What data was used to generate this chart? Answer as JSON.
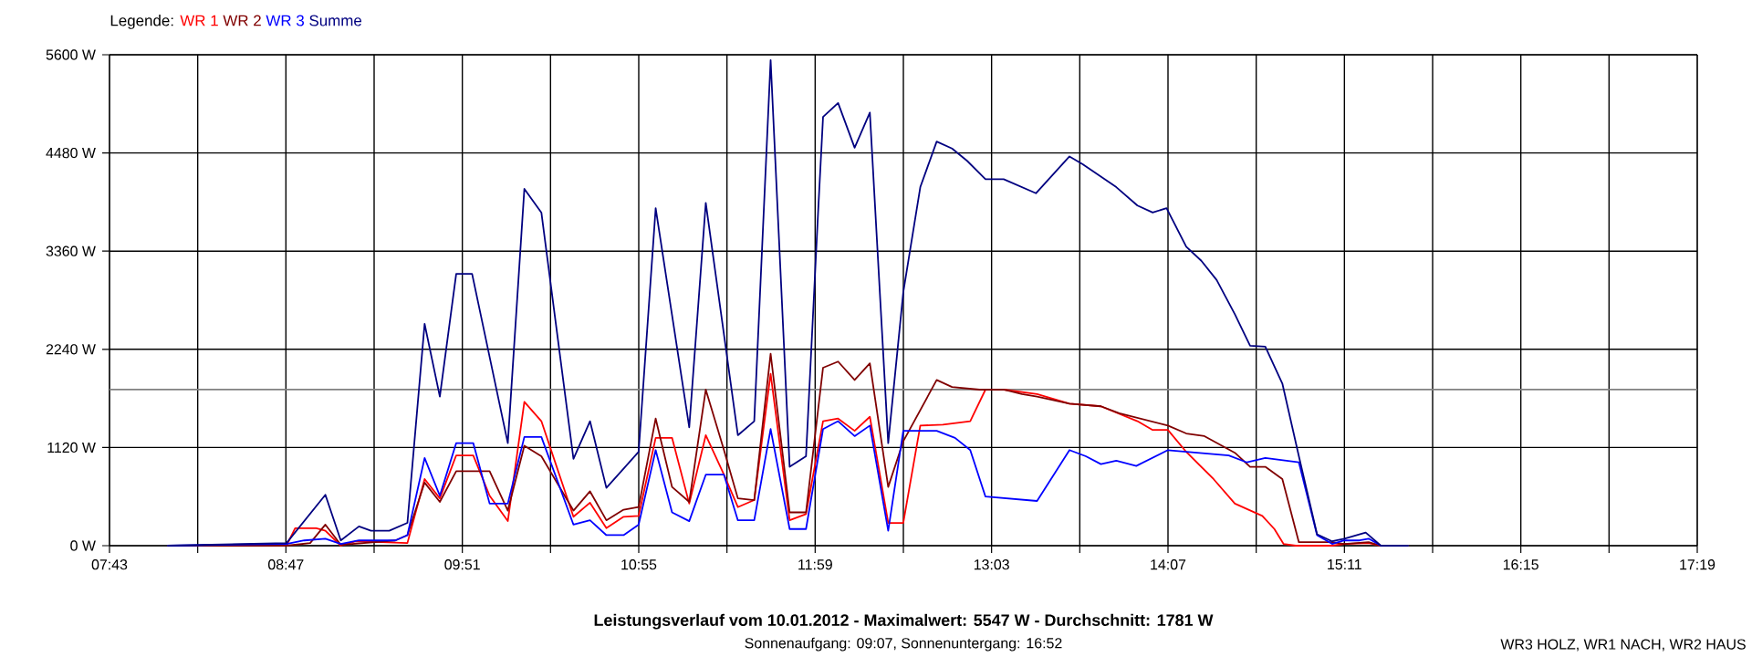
{
  "chart_data": {
    "type": "line",
    "title": "Leistungsverlauf vom 10.01.2012 - Maximalwert: 5547 W - Durchschnitt: 1781 W",
    "subtitle": "Sonnenaufgang: 09:07, Sonnenuntergang: 16:52",
    "annotations": [
      "WR3 HOLZ, WR1 NACH, WR2 HAUS"
    ],
    "legend_title": "Legende:",
    "legend": "top left",
    "grid": true,
    "xlim": [
      7.7167,
      17.3167
    ],
    "ylim": [
      0,
      5600
    ],
    "xticks": [
      {
        "value": 7.7167,
        "label": "07:43"
      },
      {
        "value": 8.25,
        "label": null
      },
      {
        "value": 8.7833,
        "label": "08:47"
      },
      {
        "value": 9.3167,
        "label": null
      },
      {
        "value": 9.85,
        "label": "09:51"
      },
      {
        "value": 10.3833,
        "label": null
      },
      {
        "value": 10.9167,
        "label": "10:55"
      },
      {
        "value": 11.45,
        "label": null
      },
      {
        "value": 11.9833,
        "label": "11:59"
      },
      {
        "value": 12.5167,
        "label": null
      },
      {
        "value": 13.05,
        "label": "13:03"
      },
      {
        "value": 13.5833,
        "label": null
      },
      {
        "value": 14.1167,
        "label": "14:07"
      },
      {
        "value": 14.65,
        "label": null
      },
      {
        "value": 15.1833,
        "label": "15:11"
      },
      {
        "value": 15.7167,
        "label": null
      },
      {
        "value": 16.25,
        "label": "16:15"
      },
      {
        "value": 16.7833,
        "label": null
      },
      {
        "value": 17.3167,
        "label": "17:19"
      }
    ],
    "yticks": [
      {
        "value": 0,
        "label": "0 W"
      },
      {
        "value": 1120,
        "label": "1120 W"
      },
      {
        "value": 2240,
        "label": "2240 W"
      },
      {
        "value": 3360,
        "label": "3360 W"
      },
      {
        "value": 4480,
        "label": "4480 W"
      },
      {
        "value": 5600,
        "label": "5600 W"
      }
    ],
    "ref_lines": [
      {
        "axis": "y",
        "value": 1781,
        "color": "#808080"
      }
    ],
    "series": [
      {
        "name": "WR 1",
        "color": "#ff0000",
        "x": [
          8.067,
          8.787,
          8.839,
          8.967,
          9.022,
          9.115,
          9.206,
          9.518,
          9.622,
          9.714,
          9.813,
          9.916,
          10.015,
          10.125,
          10.225,
          10.328,
          10.522,
          10.622,
          10.721,
          10.825,
          10.916,
          11.019,
          11.118,
          11.222,
          11.322,
          11.432,
          11.516,
          11.615,
          11.714,
          11.829,
          11.928,
          12.031,
          12.122,
          12.222,
          12.314,
          12.425,
          12.516,
          12.619,
          12.756,
          12.921,
          13.013,
          13.123,
          13.325,
          13.521,
          13.711,
          13.932,
          14.024,
          14.116,
          14.227,
          14.392,
          14.521,
          14.687,
          14.76,
          14.815,
          14.889,
          15.109,
          15.183,
          15.33,
          15.404,
          15.57
        ],
        "values": [
          0,
          0,
          200,
          200,
          170,
          0,
          50,
          30,
          760,
          540,
          1030,
          1030,
          570,
          280,
          1640,
          1420,
          330,
          490,
          200,
          330,
          340,
          1230,
          1230,
          480,
          1260,
          810,
          440,
          520,
          1960,
          290,
          360,
          1420,
          1450,
          1310,
          1470,
          260,
          260,
          1370,
          1380,
          1420,
          1780,
          1780,
          1730,
          1620,
          1590,
          1420,
          1320,
          1320,
          1070,
          760,
          480,
          340,
          190,
          20,
          0,
          0,
          20,
          30,
          0,
          0
        ]
      },
      {
        "name": "WR 2",
        "color": "#800000",
        "x": [
          8.067,
          8.787,
          8.93,
          9.022,
          9.115,
          9.445,
          9.518,
          9.622,
          9.714,
          9.813,
          10.015,
          10.125,
          10.225,
          10.328,
          10.522,
          10.622,
          10.721,
          10.825,
          10.916,
          11.019,
          11.118,
          11.222,
          11.322,
          11.432,
          11.516,
          11.615,
          11.714,
          11.829,
          11.928,
          12.031,
          12.122,
          12.222,
          12.314,
          12.425,
          12.516,
          12.718,
          12.811,
          12.977,
          13.123,
          13.234,
          13.325,
          13.521,
          13.711,
          13.822,
          14.116,
          14.227,
          14.337,
          14.521,
          14.613,
          14.705,
          14.808,
          14.908,
          15.109,
          15.183,
          15.33,
          15.404,
          15.57
        ],
        "values": [
          0,
          0,
          30,
          240,
          10,
          60,
          120,
          720,
          500,
          850,
          850,
          400,
          1140,
          1020,
          400,
          620,
          290,
          410,
          440,
          1450,
          670,
          500,
          1780,
          1090,
          540,
          520,
          2190,
          380,
          380,
          2030,
          2100,
          1890,
          2080,
          670,
          1190,
          1890,
          1810,
          1780,
          1780,
          1730,
          1700,
          1620,
          1590,
          1510,
          1370,
          1280,
          1250,
          1060,
          900,
          900,
          760,
          40,
          40,
          20,
          40,
          0,
          0
        ]
      },
      {
        "name": "WR 3",
        "color": "#0000ff",
        "x": [
          8.067,
          8.787,
          8.894,
          9.022,
          9.115,
          9.225,
          9.445,
          9.518,
          9.622,
          9.714,
          9.813,
          9.916,
          10.015,
          10.125,
          10.225,
          10.328,
          10.522,
          10.622,
          10.721,
          10.825,
          10.916,
          11.019,
          11.118,
          11.222,
          11.322,
          11.432,
          11.516,
          11.615,
          11.714,
          11.829,
          11.928,
          12.031,
          12.122,
          12.222,
          12.314,
          12.425,
          12.516,
          12.718,
          12.829,
          12.921,
          13.013,
          13.325,
          13.521,
          13.62,
          13.711,
          13.804,
          13.925,
          14.116,
          14.484,
          14.594,
          14.705,
          14.908,
          15.018,
          15.109,
          15.183,
          15.275,
          15.33,
          15.404,
          15.57
        ],
        "values": [
          0,
          20,
          60,
          80,
          20,
          60,
          60,
          120,
          1000,
          570,
          1170,
          1170,
          480,
          480,
          1240,
          1240,
          240,
          290,
          120,
          120,
          240,
          1090,
          380,
          280,
          810,
          810,
          290,
          290,
          1330,
          190,
          190,
          1330,
          1420,
          1250,
          1370,
          170,
          1310,
          1310,
          1230,
          1090,
          560,
          510,
          1090,
          1020,
          930,
          970,
          910,
          1090,
          1030,
          950,
          1000,
          950,
          120,
          20,
          60,
          60,
          80,
          0,
          0
        ]
      },
      {
        "name": "Summe",
        "color": "#000080",
        "x": [
          8.067,
          8.787,
          9.022,
          9.115,
          9.225,
          9.298,
          9.408,
          9.518,
          9.622,
          9.714,
          9.813,
          9.909,
          10.125,
          10.225,
          10.328,
          10.522,
          10.622,
          10.721,
          10.916,
          11.019,
          11.222,
          11.322,
          11.516,
          11.615,
          11.714,
          11.829,
          11.928,
          12.001,
          12.031,
          12.122,
          12.222,
          12.314,
          12.425,
          12.516,
          12.619,
          12.718,
          12.811,
          12.902,
          13.013,
          13.123,
          13.318,
          13.521,
          13.601,
          13.804,
          13.932,
          14.024,
          14.108,
          14.227,
          14.318,
          14.411,
          14.521,
          14.613,
          14.705,
          14.808,
          14.908,
          15.018,
          15.109,
          15.183,
          15.312,
          15.404,
          15.57
        ],
        "values": [
          0,
          30,
          580,
          60,
          220,
          170,
          170,
          260,
          2530,
          1700,
          3100,
          3100,
          1170,
          4070,
          3800,
          990,
          1420,
          660,
          1070,
          3850,
          1350,
          3910,
          1260,
          1420,
          5540,
          900,
          1020,
          3800,
          4890,
          5050,
          4540,
          4940,
          1170,
          2890,
          4090,
          4610,
          4530,
          4390,
          4180,
          4180,
          4020,
          4440,
          4350,
          4090,
          3880,
          3800,
          3850,
          3410,
          3250,
          3030,
          2640,
          2280,
          2270,
          1850,
          1020,
          130,
          50,
          80,
          150,
          0,
          0
        ]
      }
    ]
  }
}
